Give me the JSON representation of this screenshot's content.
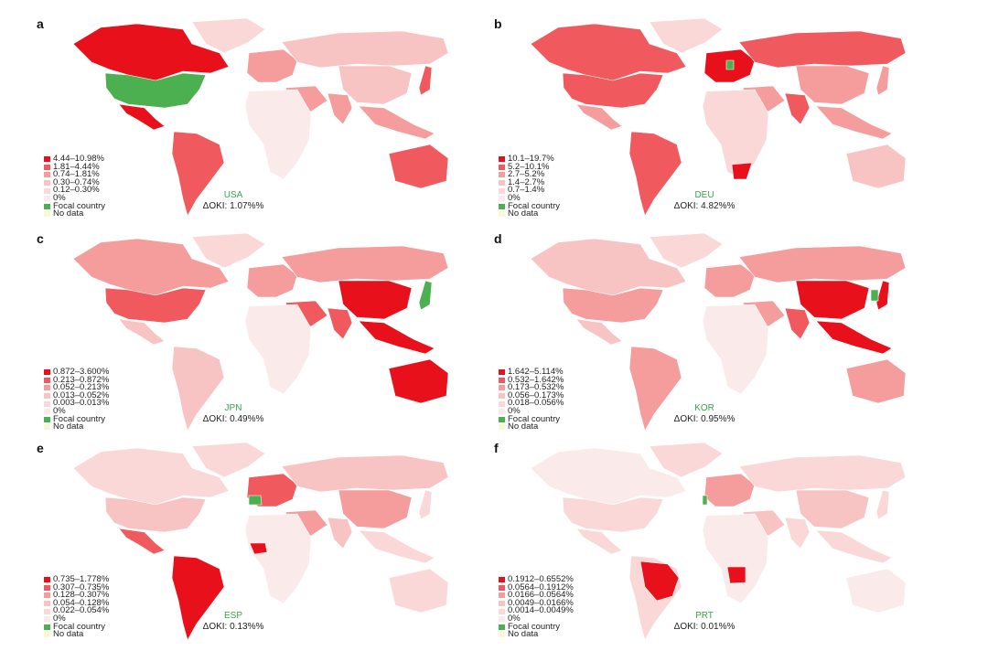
{
  "colors": {
    "focal": "#4caf50",
    "nodata": "#fbf6d3",
    "nodata_border": "#e4dc9c",
    "zero": "#fbeaea",
    "scale": [
      "#e8111b",
      "#f0595e",
      "#f59c9c",
      "#f8c3c3",
      "#fad8d8",
      "#fbeaea"
    ],
    "ice": "#f2dc4a"
  },
  "legend_common": {
    "focal_label": "Focal country",
    "nodata_label": "No data"
  },
  "panels": [
    {
      "letter": "a",
      "code": "USA",
      "delta": "ΔOKI: 1.07%%",
      "bins": [
        "4.44–10.98%",
        "1.81–4.44%",
        "0.74–1.81%",
        "0.30–0.74%",
        "0.12–0.30%",
        "0%"
      ],
      "highlights": [
        {
          "region": "canada",
          "level": 0
        },
        {
          "region": "mexico",
          "level": 0
        },
        {
          "region": "south_america",
          "level": 1
        },
        {
          "region": "australia",
          "level": 1
        },
        {
          "region": "japan",
          "level": 1
        },
        {
          "region": "europe",
          "level": 2
        },
        {
          "region": "russia",
          "level": 3
        },
        {
          "region": "china",
          "level": 3
        },
        {
          "region": "india",
          "level": 2
        },
        {
          "region": "middle_east",
          "level": 2
        },
        {
          "region": "africa",
          "level": 5
        },
        {
          "region": "se_asia",
          "level": 2
        },
        {
          "region": "greenland",
          "level": 4
        }
      ],
      "focal_region": "usa"
    },
    {
      "letter": "b",
      "code": "DEU",
      "delta": "ΔOKI: 4.82%%",
      "bins": [
        "10.1–19.7%",
        "5.2–10.1%",
        "2.7–5.2%",
        "1.4–2.7%",
        "0.7–1.4%",
        "0%"
      ],
      "highlights": [
        {
          "region": "canada",
          "level": 1
        },
        {
          "region": "usa",
          "level": 1
        },
        {
          "region": "mexico",
          "level": 2
        },
        {
          "region": "south_america",
          "level": 1
        },
        {
          "region": "russia",
          "level": 1
        },
        {
          "region": "europe",
          "level": 0
        },
        {
          "region": "china",
          "level": 2
        },
        {
          "region": "india",
          "level": 1
        },
        {
          "region": "middle_east",
          "level": 2
        },
        {
          "region": "africa",
          "level": 4
        },
        {
          "region": "south_africa",
          "level": 0
        },
        {
          "region": "australia",
          "level": 3
        },
        {
          "region": "japan",
          "level": 2
        },
        {
          "region": "se_asia",
          "level": 2
        },
        {
          "region": "greenland",
          "level": 4
        }
      ],
      "focal_region": "germany"
    },
    {
      "letter": "c",
      "code": "JPN",
      "delta": "ΔOKI: 0.49%%",
      "bins": [
        "0.872–3.600%",
        "0.213–0.872%",
        "0.052–0.213%",
        "0.013–0.052%",
        "0.003–0.013%",
        "0%"
      ],
      "highlights": [
        {
          "region": "canada",
          "level": 2
        },
        {
          "region": "usa",
          "level": 1
        },
        {
          "region": "mexico",
          "level": 3
        },
        {
          "region": "south_america",
          "level": 3
        },
        {
          "region": "russia",
          "level": 2
        },
        {
          "region": "europe",
          "level": 2
        },
        {
          "region": "china",
          "level": 0
        },
        {
          "region": "india",
          "level": 1
        },
        {
          "region": "middle_east",
          "level": 1
        },
        {
          "region": "africa",
          "level": 5
        },
        {
          "region": "australia",
          "level": 0
        },
        {
          "region": "se_asia",
          "level": 0
        },
        {
          "region": "greenland",
          "level": 4
        }
      ],
      "focal_region": "japan"
    },
    {
      "letter": "d",
      "code": "KOR",
      "delta": "ΔOKI: 0.95%%",
      "bins": [
        "1.642–5.114%",
        "0.532–1.642%",
        "0.173–0.532%",
        "0.056–0.173%",
        "0.018–0.056%",
        "0%"
      ],
      "highlights": [
        {
          "region": "canada",
          "level": 3
        },
        {
          "region": "usa",
          "level": 2
        },
        {
          "region": "mexico",
          "level": 3
        },
        {
          "region": "south_america",
          "level": 2
        },
        {
          "region": "russia",
          "level": 2
        },
        {
          "region": "europe",
          "level": 2
        },
        {
          "region": "china",
          "level": 0
        },
        {
          "region": "india",
          "level": 1
        },
        {
          "region": "middle_east",
          "level": 2
        },
        {
          "region": "africa",
          "level": 5
        },
        {
          "region": "australia",
          "level": 2
        },
        {
          "region": "se_asia",
          "level": 0
        },
        {
          "region": "japan",
          "level": 0
        },
        {
          "region": "greenland",
          "level": 4
        }
      ],
      "focal_region": "korea"
    },
    {
      "letter": "e",
      "code": "ESP",
      "delta": "ΔOKI: 0.13%%",
      "bins": [
        "0.735–1.778%",
        "0.307–0.735%",
        "0.128–0.307%",
        "0.054–0.128%",
        "0.022–0.054%",
        "0%"
      ],
      "highlights": [
        {
          "region": "canada",
          "level": 4
        },
        {
          "region": "usa",
          "level": 3
        },
        {
          "region": "mexico",
          "level": 1
        },
        {
          "region": "south_america",
          "level": 0
        },
        {
          "region": "russia",
          "level": 3
        },
        {
          "region": "europe",
          "level": 1
        },
        {
          "region": "china",
          "level": 2
        },
        {
          "region": "india",
          "level": 3
        },
        {
          "region": "middle_east",
          "level": 2
        },
        {
          "region": "africa",
          "level": 5
        },
        {
          "region": "west_africa",
          "level": 0
        },
        {
          "region": "australia",
          "level": 4
        },
        {
          "region": "se_asia",
          "level": 4
        },
        {
          "region": "japan",
          "level": 4
        },
        {
          "region": "greenland",
          "level": 4
        }
      ],
      "focal_region": "spain"
    },
    {
      "letter": "f",
      "code": "PRT",
      "delta": "ΔOKI: 0.01%%",
      "bins": [
        "0.1912–0.6552%",
        "0.0564–0.1912%",
        "0.0166–0.0564%",
        "0.0049–0.0166%",
        "0.0014–0.0049%",
        "0%"
      ],
      "highlights": [
        {
          "region": "canada",
          "level": 5
        },
        {
          "region": "usa",
          "level": 4
        },
        {
          "region": "mexico",
          "level": 4
        },
        {
          "region": "south_america",
          "level": 4
        },
        {
          "region": "brazil",
          "level": 0
        },
        {
          "region": "russia",
          "level": 4
        },
        {
          "region": "europe",
          "level": 2
        },
        {
          "region": "china",
          "level": 3
        },
        {
          "region": "india",
          "level": 4
        },
        {
          "region": "middle_east",
          "level": 3
        },
        {
          "region": "africa",
          "level": 5
        },
        {
          "region": "angola",
          "level": 0
        },
        {
          "region": "australia",
          "level": 5
        },
        {
          "region": "se_asia",
          "level": 4
        },
        {
          "region": "japan",
          "level": 4
        },
        {
          "region": "greenland",
          "level": 4
        }
      ],
      "focal_region": "portugal"
    }
  ]
}
